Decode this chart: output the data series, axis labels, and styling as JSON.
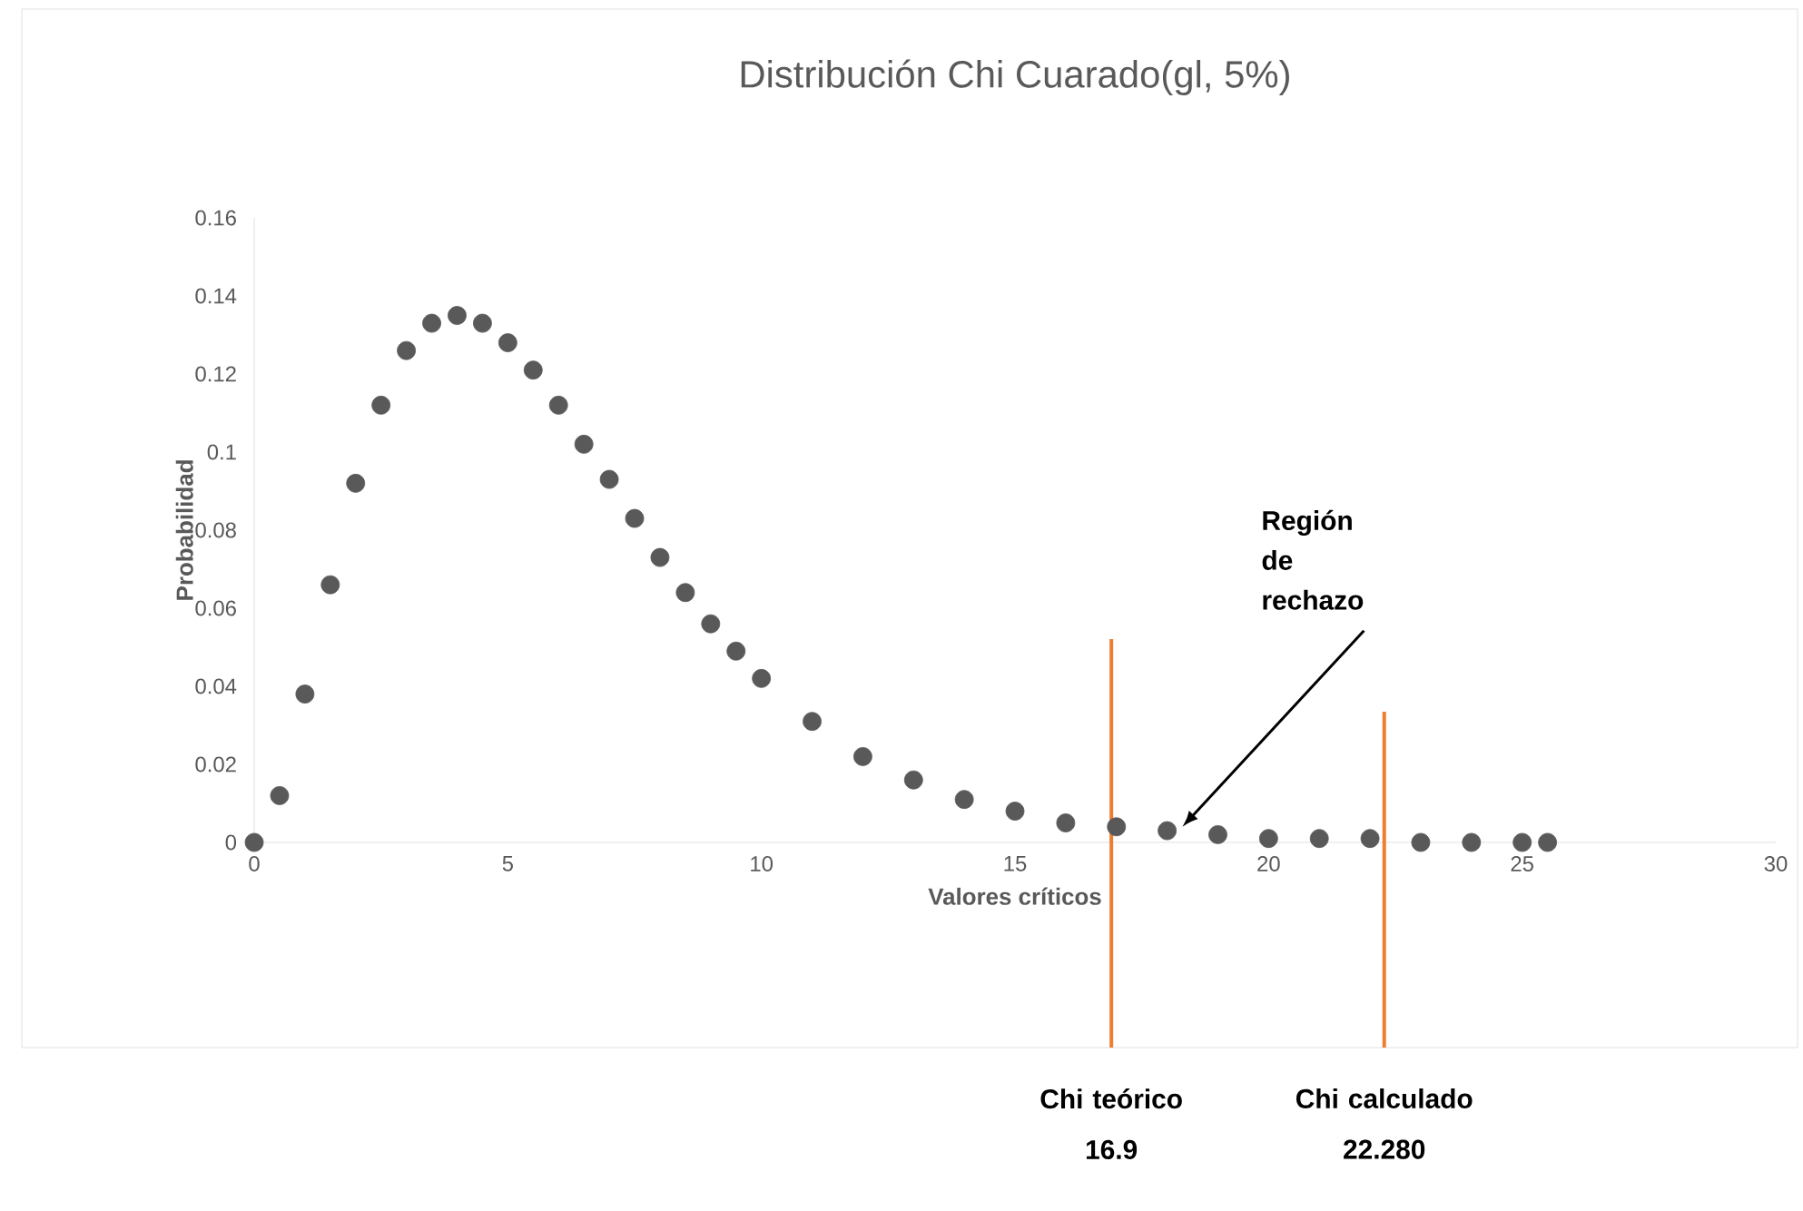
{
  "chart_data": {
    "type": "scatter",
    "title": "Distribución Chi Cuarado(gl, 5%)",
    "xlabel": "Valores críticos",
    "ylabel": "Probabilidad",
    "x": [
      0,
      0.5,
      1,
      1.5,
      2,
      2.5,
      3,
      3.5,
      4,
      4.5,
      5,
      5.5,
      6,
      6.5,
      7,
      7.5,
      8,
      8.5,
      9,
      9.5,
      10,
      11,
      12,
      13,
      14,
      15,
      16,
      17,
      18,
      19,
      20,
      21,
      22,
      23,
      24,
      25,
      25.5
    ],
    "series": [
      {
        "color": "#595959",
        "values": [
          0,
          0.012,
          0.038,
          0.066,
          0.092,
          0.112,
          0.126,
          0.133,
          0.135,
          0.133,
          0.128,
          0.121,
          0.112,
          0.102,
          0.093,
          0.083,
          0.073,
          0.064,
          0.056,
          0.049,
          0.042,
          0.031,
          0.022,
          0.016,
          0.011,
          0.008,
          0.005,
          0.004,
          0.003,
          0.002,
          0.001,
          0.001,
          0.001,
          0.0,
          0.0,
          0.0,
          0.0
        ]
      }
    ],
    "marker": "circle",
    "xlim": [
      0,
      30
    ],
    "ylim": [
      0,
      0.16
    ],
    "xticks": [
      0,
      5,
      10,
      15,
      20,
      25,
      30
    ],
    "yticks": [
      0,
      0.02,
      0.04,
      0.06,
      0.08,
      0.1,
      0.12,
      0.14,
      0.16
    ],
    "ref_lines": [
      {
        "axis": "x",
        "value": 16.9,
        "label": "Chi teórico 16.9",
        "color": "#ed7d31"
      },
      {
        "axis": "x",
        "value": 22.28,
        "label": "Chi calculado 22.280",
        "color": "#ed7d31"
      }
    ],
    "annotations": [
      {
        "text": "Región de rechazo",
        "x": 18.3,
        "y": 0.004
      }
    ]
  }
}
